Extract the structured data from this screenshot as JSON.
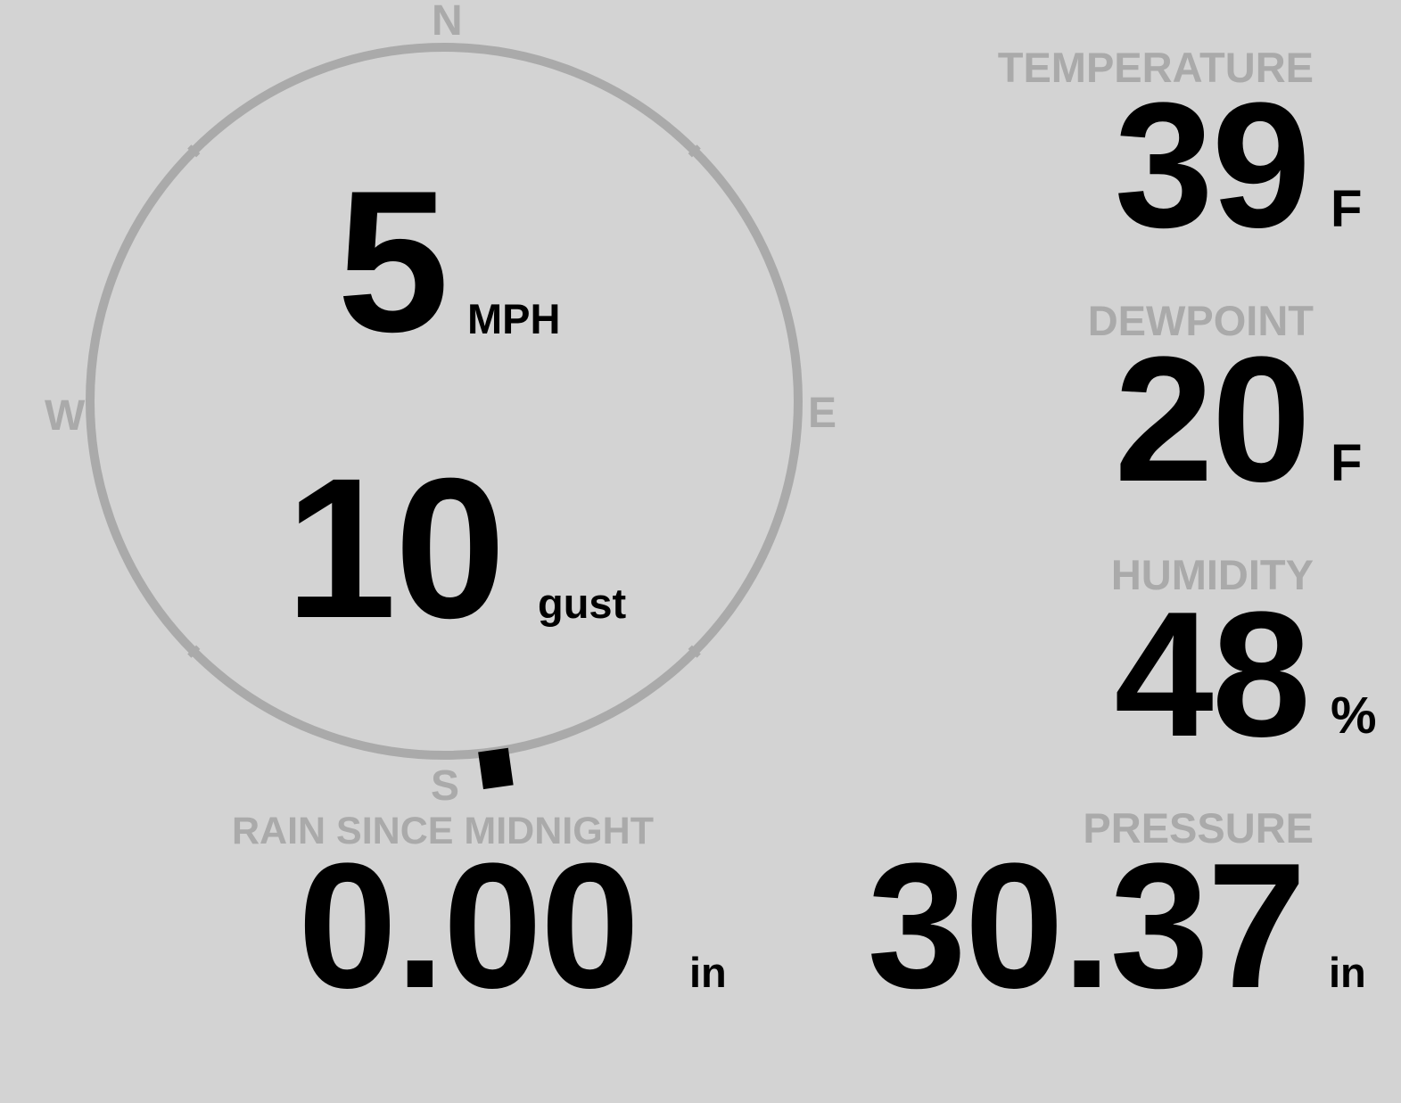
{
  "wind": {
    "speed": "5",
    "speed_unit": "MPH",
    "gust": "10",
    "gust_label": "gust",
    "direction_deg": 172,
    "compass": {
      "n": "N",
      "e": "E",
      "s": "S",
      "w": "W"
    }
  },
  "temperature": {
    "label": "TEMPERATURE",
    "value": "39",
    "unit": "F"
  },
  "dewpoint": {
    "label": "DEWPOINT",
    "value": "20",
    "unit": "F"
  },
  "humidity": {
    "label": "HUMIDITY",
    "value": "48",
    "unit": "%"
  },
  "rain": {
    "label": "RAIN SINCE MIDNIGHT",
    "value": "0.00",
    "unit": "in"
  },
  "pressure": {
    "label": "PRESSURE",
    "value": "30.37",
    "unit": "in"
  },
  "colors": {
    "background": "#d3d3d3",
    "label": "#aaaaaa",
    "value": "#000000",
    "dial": "#aaaaaa"
  }
}
